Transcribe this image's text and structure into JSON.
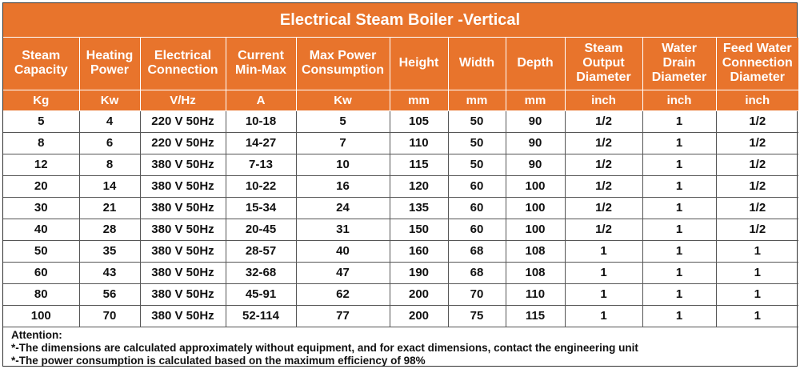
{
  "title": "Electrical Steam Boiler -Vertical",
  "colors": {
    "header_bg": "#e8742c",
    "header_text": "#ffffff"
  },
  "columns": [
    {
      "header": "Steam\nCapacity",
      "unit": "Kg"
    },
    {
      "header": "Heating\nPower",
      "unit": "Kw"
    },
    {
      "header": "Electrical\nConnection",
      "unit": "V/Hz"
    },
    {
      "header": "Current\nMin-Max",
      "unit": "A"
    },
    {
      "header": "Max Power\nConsumption",
      "unit": "Kw"
    },
    {
      "header": "Height",
      "unit": "mm"
    },
    {
      "header": "Width",
      "unit": "mm"
    },
    {
      "header": "Depth",
      "unit": "mm"
    },
    {
      "header": "Steam\nOutput\nDiameter",
      "unit": "inch"
    },
    {
      "header": "Water\nDrain\nDiameter",
      "unit": "inch"
    },
    {
      "header": "Feed Water\nConnection\nDiameter",
      "unit": "inch"
    }
  ],
  "rows": [
    [
      "5",
      "4",
      "220 V 50Hz",
      "10-18",
      "5",
      "105",
      "50",
      "90",
      "1/2",
      "1",
      "1/2"
    ],
    [
      "8",
      "6",
      "220 V 50Hz",
      "14-27",
      "7",
      "110",
      "50",
      "90",
      "1/2",
      "1",
      "1/2"
    ],
    [
      "12",
      "8",
      "380 V 50Hz",
      "7-13",
      "10",
      "115",
      "50",
      "90",
      "1/2",
      "1",
      "1/2"
    ],
    [
      "20",
      "14",
      "380 V 50Hz",
      "10-22",
      "16",
      "120",
      "60",
      "100",
      "1/2",
      "1",
      "1/2"
    ],
    [
      "30",
      "21",
      "380 V 50Hz",
      "15-34",
      "24",
      "135",
      "60",
      "100",
      "1/2",
      "1",
      "1/2"
    ],
    [
      "40",
      "28",
      "380 V 50Hz",
      "20-45",
      "31",
      "150",
      "60",
      "100",
      "1/2",
      "1",
      "1/2"
    ],
    [
      "50",
      "35",
      "380 V 50Hz",
      "28-57",
      "40",
      "160",
      "68",
      "108",
      "1",
      "1",
      "1"
    ],
    [
      "60",
      "43",
      "380 V 50Hz",
      "32-68",
      "47",
      "190",
      "68",
      "108",
      "1",
      "1",
      "1"
    ],
    [
      "80",
      "56",
      "380 V 50Hz",
      "45-91",
      "62",
      "200",
      "70",
      "110",
      "1",
      "1",
      "1"
    ],
    [
      "100",
      "70",
      "380 V 50Hz",
      "52-114",
      "77",
      "200",
      "75",
      "115",
      "1",
      "1",
      "1"
    ]
  ],
  "notes": {
    "heading": "Attention:",
    "lines": [
      "*-The dimensions are calculated approximately without equipment, and for exact dimensions, contact the engineering unit",
      "*-The power consumption is calculated based on the maximum efficiency of 98%"
    ]
  }
}
